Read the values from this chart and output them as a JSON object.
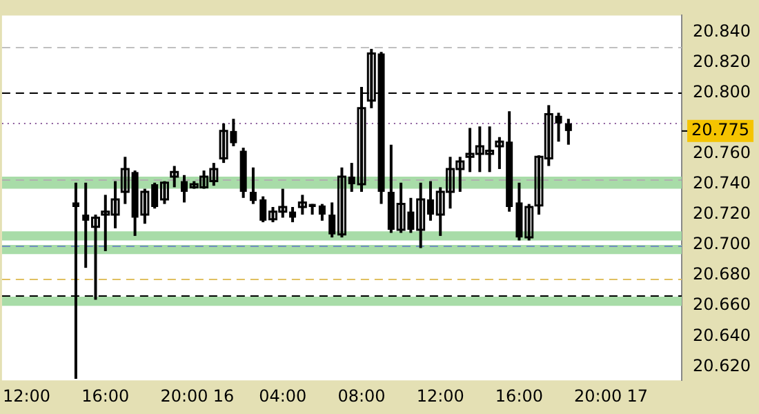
{
  "chart_data": {
    "type": "candlestick",
    "categories": [
      null,
      null,
      "12:00",
      null,
      null,
      null,
      null,
      null,
      null,
      null,
      "16:00",
      null,
      null,
      null,
      null,
      null,
      null,
      null,
      "20:00",
      null,
      null,
      null,
      "16",
      null,
      null,
      null,
      null,
      null,
      "04:00",
      null,
      null,
      null,
      null,
      null,
      null,
      null,
      "08:00",
      null,
      null,
      null,
      null,
      null,
      null,
      null,
      "12:00",
      null,
      null,
      null,
      null,
      null,
      null,
      null,
      "16:00",
      null,
      null,
      null,
      null,
      null,
      null,
      null,
      "20:00",
      null,
      null,
      null,
      "17",
      null,
      null,
      null,
      null
    ],
    "ohlc": [
      null,
      null,
      null,
      null,
      null,
      null,
      null,
      [
        20.728,
        20.741,
        20.612,
        20.725
      ],
      [
        20.72,
        20.741,
        20.685,
        20.716
      ],
      [
        20.712,
        20.72,
        20.664,
        20.718
      ],
      [
        20.72,
        20.733,
        20.696,
        20.722
      ],
      [
        20.72,
        20.742,
        20.711,
        20.73
      ],
      [
        20.735,
        20.758,
        20.727,
        20.75
      ],
      [
        20.748,
        20.749,
        20.706,
        20.718
      ],
      [
        20.72,
        20.737,
        20.714,
        20.735
      ],
      [
        20.74,
        20.741,
        20.724,
        20.725
      ],
      [
        20.73,
        20.742,
        20.727,
        20.741
      ],
      [
        20.745,
        20.752,
        20.738,
        20.748
      ],
      [
        20.742,
        20.746,
        20.728,
        20.735
      ],
      [
        20.738,
        20.742,
        20.737,
        20.74
      ],
      [
        20.738,
        20.749,
        20.737,
        20.745
      ],
      [
        20.742,
        20.754,
        20.739,
        20.75
      ],
      [
        20.757,
        20.78,
        20.754,
        20.775
      ],
      [
        20.775,
        20.783,
        20.765,
        20.767
      ],
      [
        20.762,
        20.764,
        20.731,
        20.735
      ],
      [
        20.735,
        20.751,
        20.727,
        20.729
      ],
      [
        20.73,
        20.732,
        20.715,
        20.716
      ],
      [
        20.717,
        20.725,
        20.715,
        20.722
      ],
      [
        20.722,
        20.737,
        20.718,
        20.725
      ],
      [
        20.722,
        20.725,
        20.715,
        20.718
      ],
      [
        20.725,
        20.733,
        20.72,
        20.728
      ],
      [
        20.727,
        20.727,
        20.72,
        20.725
      ],
      [
        20.726,
        20.727,
        20.716,
        20.72
      ],
      [
        20.72,
        20.728,
        20.705,
        20.707
      ],
      [
        20.707,
        20.751,
        20.705,
        20.745
      ],
      [
        20.745,
        20.754,
        20.735,
        20.74
      ],
      [
        20.74,
        20.804,
        20.735,
        20.79
      ],
      [
        20.795,
        20.829,
        20.79,
        20.826
      ],
      [
        20.826,
        20.827,
        20.727,
        20.735
      ],
      [
        20.735,
        20.766,
        20.708,
        20.71
      ],
      [
        20.71,
        20.741,
        20.708,
        20.727
      ],
      [
        20.722,
        20.731,
        20.708,
        20.71
      ],
      [
        20.71,
        20.741,
        20.698,
        20.73
      ],
      [
        20.73,
        20.742,
        20.716,
        20.72
      ],
      [
        20.72,
        20.738,
        20.706,
        20.735
      ],
      [
        20.735,
        20.758,
        20.724,
        20.75
      ],
      [
        20.75,
        20.758,
        20.735,
        20.755
      ],
      [
        20.758,
        20.777,
        20.748,
        20.76
      ],
      [
        20.76,
        20.778,
        20.748,
        20.765
      ],
      [
        20.76,
        20.778,
        20.748,
        20.762
      ],
      [
        20.765,
        20.771,
        20.75,
        20.768
      ],
      [
        20.768,
        20.788,
        20.722,
        20.725
      ],
      [
        20.728,
        20.741,
        20.703,
        20.705
      ],
      [
        20.705,
        20.727,
        20.703,
        20.725
      ],
      [
        20.726,
        20.759,
        20.72,
        20.758
      ],
      [
        20.757,
        20.792,
        20.752,
        20.786
      ],
      [
        20.785,
        20.787,
        20.768,
        20.78
      ],
      [
        20.78,
        20.783,
        20.766,
        20.775
      ],
      null,
      null,
      null,
      null,
      null,
      null,
      null,
      null,
      null,
      null,
      null
    ],
    "color": "#000000",
    "ylim": [
      20.611,
      20.851
    ],
    "yticks": [
      {
        "value": 20.62,
        "label": "20.620"
      },
      {
        "value": 20.64,
        "label": "20.640"
      },
      {
        "value": 20.66,
        "label": "20.660"
      },
      {
        "value": 20.68,
        "label": "20.680"
      },
      {
        "value": 20.7,
        "label": "20.700"
      },
      {
        "value": 20.72,
        "label": "20.720"
      },
      {
        "value": 20.74,
        "label": "20.740"
      },
      {
        "value": 20.76,
        "label": "20.760"
      },
      {
        "value": 20.8,
        "label": "20.800"
      },
      {
        "value": 20.82,
        "label": "20.820"
      },
      {
        "value": 20.84,
        "label": "20.840"
      }
    ],
    "ref_lines": [
      {
        "axis": "y",
        "value": 20.83,
        "color": "#c0c0c0",
        "line_style": "dashed"
      },
      {
        "axis": "y",
        "value": 20.8,
        "color": "#000000",
        "line_style": "dashed"
      },
      {
        "axis": "y",
        "value": 20.78,
        "color": "#8a5a9a",
        "line_style": "dotted"
      },
      {
        "axis": "y",
        "value": 20.743,
        "color": "#b0b0b0",
        "line_style": "dashed"
      },
      {
        "axis": "y",
        "value": 20.7,
        "color": "#7090c0",
        "line_style": "dashed"
      },
      {
        "axis": "y",
        "value": 20.678,
        "color": "#e0c060",
        "line_style": "dashed"
      },
      {
        "axis": "y",
        "value": 20.667,
        "color": "#000000",
        "line_style": "dashed"
      }
    ],
    "bands": [
      {
        "axis": "y",
        "from": 20.66,
        "to": 20.666,
        "color": "#a8dca8"
      },
      {
        "axis": "y",
        "from": 20.694,
        "to": 20.7,
        "color": "#a8dca8"
      },
      {
        "axis": "y",
        "from": 20.737,
        "to": 20.745,
        "color": "#a8dca8"
      },
      {
        "axis": "y",
        "from": 20.703,
        "to": 20.709,
        "color": "#a8dca8"
      }
    ],
    "annotations": [
      "20.775"
    ],
    "grid": false
  }
}
